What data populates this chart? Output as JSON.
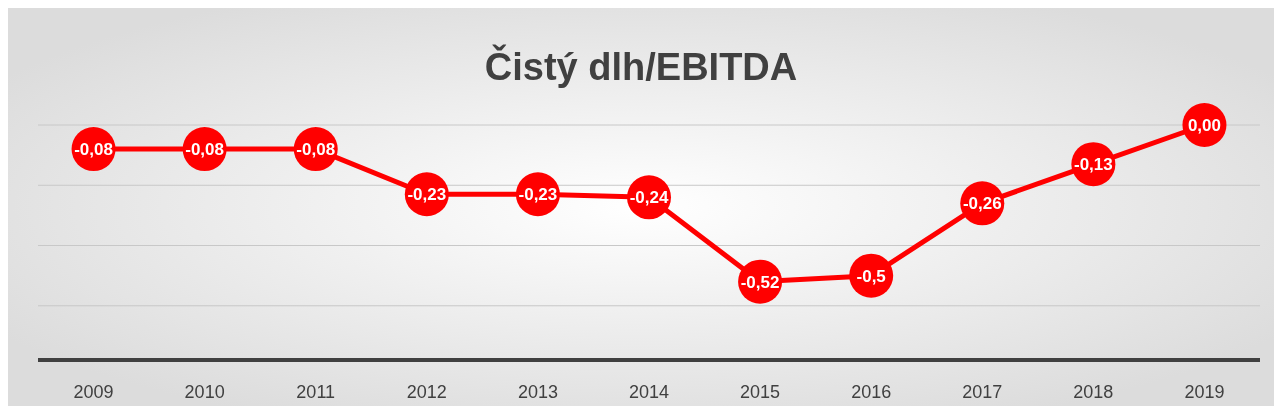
{
  "chart_data": {
    "type": "line",
    "title": "Čistý dlh/EBITDA",
    "categories": [
      "2009",
      "2010",
      "2011",
      "2012",
      "2013",
      "2014",
      "2015",
      "2016",
      "2017",
      "2018",
      "2019"
    ],
    "series": [
      {
        "color": "#ff0000",
        "values": [
          -0.08,
          -0.08,
          -0.08,
          -0.23,
          -0.23,
          -0.24,
          -0.52,
          -0.5,
          -0.26,
          -0.13,
          0.0
        ],
        "value_labels": [
          "-0,08",
          "-0,08",
          "-0,08",
          "-0,23",
          "-0,23",
          "-0,24",
          "-0,52",
          "-0,5",
          "-0,26",
          "-0,13",
          "0,00"
        ]
      }
    ],
    "ylim": [
      -0.78,
      0.0
    ],
    "yticks": [
      {
        "value": -0.6,
        "label": null
      },
      {
        "value": -0.4,
        "label": null
      },
      {
        "value": -0.2,
        "label": null
      },
      {
        "value": 0,
        "label": null
      }
    ],
    "grid": "y",
    "tick_labels": "x",
    "marker": "circle",
    "line_style": "solid"
  }
}
